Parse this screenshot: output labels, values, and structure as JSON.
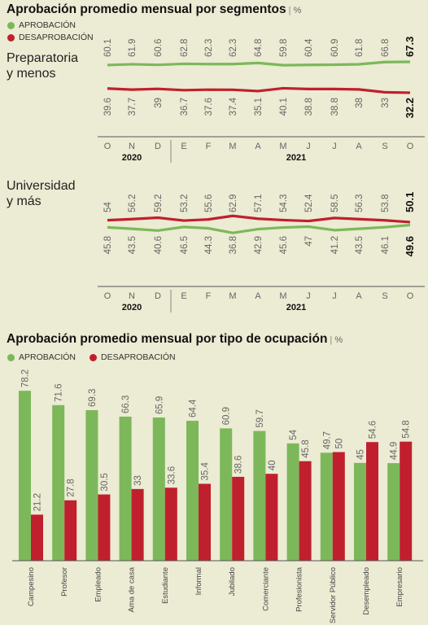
{
  "section1": {
    "title": "Aprobación promedio mensual por segmentos",
    "unit": "%",
    "legend": [
      {
        "label": "APROBACIÓN",
        "color": "#7cb85a"
      },
      {
        "label": "DESAPROBACIÓN",
        "color": "#c0202e"
      }
    ],
    "segment_a": [
      "Preparatoria",
      "y menos"
    ],
    "segment_b": [
      "Universidad",
      "y más"
    ],
    "months": [
      "O",
      "N",
      "D",
      "E",
      "F",
      "M",
      "A",
      "M",
      "J",
      "J",
      "A",
      "S",
      "O"
    ],
    "year_a": "2020",
    "year_b": "2021"
  },
  "section2": {
    "title": "Aprobación promedio mensual por tipo de ocupación",
    "unit": "%",
    "legend": [
      {
        "label": "APROBACIÓN",
        "color": "#7cb85a"
      },
      {
        "label": "DESAPROBACIÓN",
        "color": "#c0202e"
      }
    ]
  },
  "chart_data": [
    {
      "type": "line",
      "subtitle": "Preparatoria y menos",
      "categories": [
        "O",
        "N",
        "D",
        "E",
        "F",
        "M",
        "A",
        "M",
        "J",
        "J",
        "A",
        "S",
        "O"
      ],
      "series": [
        {
          "name": "APROBACIÓN",
          "color": "#7cb85a",
          "values": [
            60.1,
            61.9,
            60.6,
            62.8,
            62.3,
            62.3,
            64.8,
            59.8,
            60.4,
            60.9,
            61.8,
            66.8,
            67.3
          ]
        },
        {
          "name": "DESAPROBACIÓN",
          "color": "#c0202e",
          "values": [
            39.6,
            37.7,
            39,
            36.7,
            37.6,
            37.4,
            35.1,
            40.1,
            38.8,
            38.8,
            38.0,
            33.0,
            32.2
          ]
        }
      ]
    },
    {
      "type": "line",
      "subtitle": "Universidad y más",
      "categories": [
        "O",
        "N",
        "D",
        "E",
        "F",
        "M",
        "A",
        "M",
        "J",
        "J",
        "A",
        "S",
        "O"
      ],
      "series": [
        {
          "name": "APROBACIÓN",
          "color": "#7cb85a",
          "values": [
            45.8,
            43.5,
            40.6,
            46.5,
            44.3,
            36.8,
            42.9,
            45.6,
            47.0,
            41.2,
            43.5,
            46.1,
            49.6
          ]
        },
        {
          "name": "DESAPROBACIÓN",
          "color": "#c0202e",
          "values": [
            54.0,
            56.2,
            59.2,
            53.2,
            55.6,
            62.9,
            57.1,
            54.3,
            52.4,
            58.5,
            56.3,
            53.8,
            50.1
          ]
        }
      ]
    },
    {
      "type": "bar",
      "categories": [
        "Campesino",
        "Profesor",
        "Empleado",
        "Ama de casa",
        "Estudiante",
        "Informal",
        "Jubilado",
        "Comerciante",
        "Profesionista",
        "Servidor Público",
        "Desempleado",
        "Empresario"
      ],
      "series": [
        {
          "name": "APROBACIÓN",
          "color": "#7cb85a",
          "values": [
            78.2,
            71.6,
            69.3,
            66.3,
            65.9,
            64.4,
            60.9,
            59.7,
            54.0,
            49.7,
            45.0,
            44.9
          ]
        },
        {
          "name": "DESAPROBACIÓN",
          "color": "#c0202e",
          "values": [
            21.2,
            27.8,
            30.5,
            33.0,
            33.6,
            35.4,
            38.6,
            40.0,
            45.8,
            50.0,
            54.6,
            54.8
          ]
        }
      ]
    }
  ]
}
